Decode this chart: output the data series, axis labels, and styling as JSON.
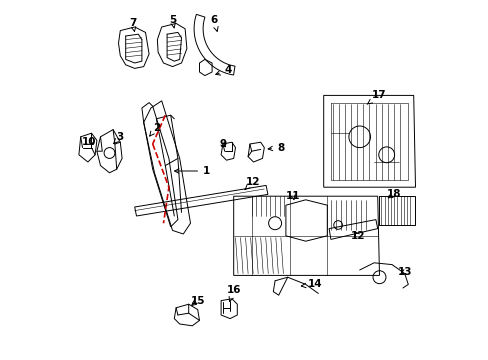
{
  "bg_color": "#ffffff",
  "line_color": "#000000",
  "red_dashed_color": "#cc0000",
  "label_fontsize": 7.5
}
